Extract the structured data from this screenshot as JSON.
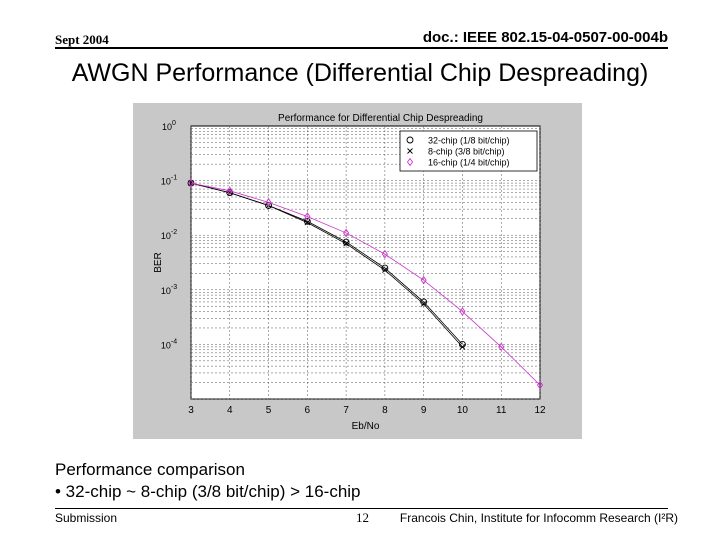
{
  "header": {
    "date": "Sept 2004",
    "doc_id": "doc.: IEEE 802.15-04-0507-00-004b"
  },
  "slide": {
    "title": "AWGN Performance (Differential Chip Despreading)",
    "body_lines": [
      "Performance comparison",
      "• 32-chip ~ 8-chip (3/8 bit/chip) > 16-chip"
    ]
  },
  "footer": {
    "left": "Submission",
    "page": "12",
    "right": "Francois Chin, Institute for Infocomm Research (I²R)"
  },
  "chart_data": {
    "type": "line",
    "title": "Performance for Differential Chip Despreading",
    "xlabel": "Eb/No",
    "ylabel": "BER",
    "xlim": [
      3,
      12
    ],
    "ylim": [
      1e-05,
      1
    ],
    "y_scale": "log",
    "grid": true,
    "legend_position": "top-right",
    "x_ticks": [
      "3",
      "4",
      "5",
      "6",
      "7",
      "8",
      "9",
      "10",
      "11",
      "12"
    ],
    "y_ticks": [
      {
        "base": "10",
        "exp": "0"
      },
      {
        "base": "10",
        "exp": "-1"
      },
      {
        "base": "10",
        "exp": "-2"
      },
      {
        "base": "10",
        "exp": "-3"
      },
      {
        "base": "10",
        "exp": "-4"
      }
    ],
    "series": [
      {
        "name": "32-chip (1/8 bit/chip)",
        "marker": "circle",
        "color": "#000000",
        "x": [
          3,
          4,
          5,
          6,
          7,
          8,
          9,
          10
        ],
        "y": [
          0.09,
          0.06,
          0.035,
          0.018,
          0.0075,
          0.0025,
          0.0006,
          0.0001
        ]
      },
      {
        "name": "8-chip (3/8 bit/chip)",
        "marker": "x",
        "color": "#000000",
        "x": [
          3,
          4,
          5,
          6,
          7,
          8,
          9,
          10
        ],
        "y": [
          0.09,
          0.06,
          0.035,
          0.017,
          0.007,
          0.0023,
          0.00055,
          9e-05
        ]
      },
      {
        "name": "16-chip (1/4 bit/chip)",
        "marker": "diamond",
        "color": "#cc33cc",
        "x": [
          3,
          4,
          5,
          6,
          7,
          8,
          9,
          10,
          11,
          12
        ],
        "y": [
          0.09,
          0.065,
          0.04,
          0.022,
          0.011,
          0.0045,
          0.0015,
          0.0004,
          9e-05,
          1.8e-05
        ]
      }
    ]
  }
}
